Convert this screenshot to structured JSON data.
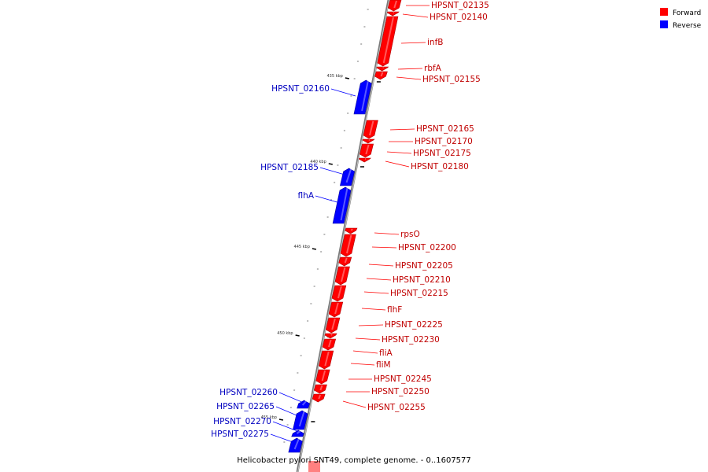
{
  "caption": "Helicobacter pylori SNT49, complete genome. - 0..1607577",
  "legend": [
    {
      "label": "Forward",
      "color": "#ff0000"
    },
    {
      "label": "Reverse",
      "color": "#0000ff"
    }
  ],
  "ticks": [
    "435 kbp",
    "440 kbp",
    "445 kbp",
    "450 kbp",
    "455 kbp"
  ],
  "genes": [
    {
      "name": "HPSNT_02135",
      "strand": "forward"
    },
    {
      "name": "HPSNT_02140",
      "strand": "forward"
    },
    {
      "name": "infB",
      "strand": "forward"
    },
    {
      "name": "rbfA",
      "strand": "forward"
    },
    {
      "name": "HPSNT_02155",
      "strand": "forward"
    },
    {
      "name": "HPSNT_02160",
      "strand": "reverse"
    },
    {
      "name": "HPSNT_02165",
      "strand": "forward"
    },
    {
      "name": "HPSNT_02170",
      "strand": "forward"
    },
    {
      "name": "HPSNT_02175",
      "strand": "forward"
    },
    {
      "name": "HPSNT_02180",
      "strand": "forward"
    },
    {
      "name": "HPSNT_02185",
      "strand": "reverse"
    },
    {
      "name": "flhA",
      "strand": "reverse"
    },
    {
      "name": "rpsO",
      "strand": "forward"
    },
    {
      "name": "HPSNT_02200",
      "strand": "forward"
    },
    {
      "name": "HPSNT_02205",
      "strand": "forward"
    },
    {
      "name": "HPSNT_02210",
      "strand": "forward"
    },
    {
      "name": "HPSNT_02215",
      "strand": "forward"
    },
    {
      "name": "flhF",
      "strand": "forward"
    },
    {
      "name": "HPSNT_02225",
      "strand": "forward"
    },
    {
      "name": "HPSNT_02230",
      "strand": "forward"
    },
    {
      "name": "fliA",
      "strand": "forward"
    },
    {
      "name": "fliM",
      "strand": "forward"
    },
    {
      "name": "HPSNT_02245",
      "strand": "forward"
    },
    {
      "name": "HPSNT_02250",
      "strand": "forward"
    },
    {
      "name": "HPSNT_02255",
      "strand": "forward"
    },
    {
      "name": "HPSNT_02260",
      "strand": "reverse"
    },
    {
      "name": "HPSNT_02265",
      "strand": "reverse"
    },
    {
      "name": "HPSNT_02270",
      "strand": "reverse"
    },
    {
      "name": "HPSNT_02275",
      "strand": "reverse"
    }
  ]
}
